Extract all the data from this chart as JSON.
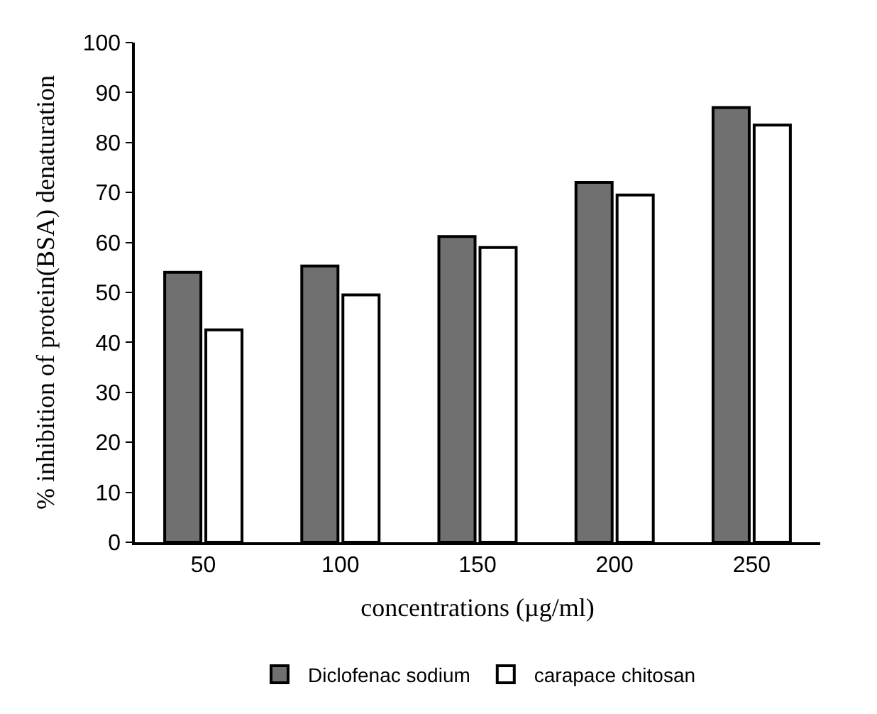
{
  "chart_data": {
    "type": "bar",
    "xlabel": "concentrations (µg/ml)",
    "ylabel": "% inhibition of protein(BSA) denaturation",
    "categories": [
      "50",
      "100",
      "150",
      "200",
      "250"
    ],
    "series": [
      {
        "name": "Diclofenac sodium",
        "color": "#707070",
        "values": [
          54,
          55.3,
          61.2,
          72,
          87
        ]
      },
      {
        "name": "carapace chitosan",
        "color": "#ffffff",
        "values": [
          42.5,
          49.5,
          59,
          69.5,
          83.5
        ]
      }
    ],
    "ylim": [
      0,
      100
    ],
    "yticks": [
      0,
      10,
      20,
      30,
      40,
      50,
      60,
      70,
      80,
      90,
      100
    ],
    "grid": false,
    "legend": "bottom"
  }
}
